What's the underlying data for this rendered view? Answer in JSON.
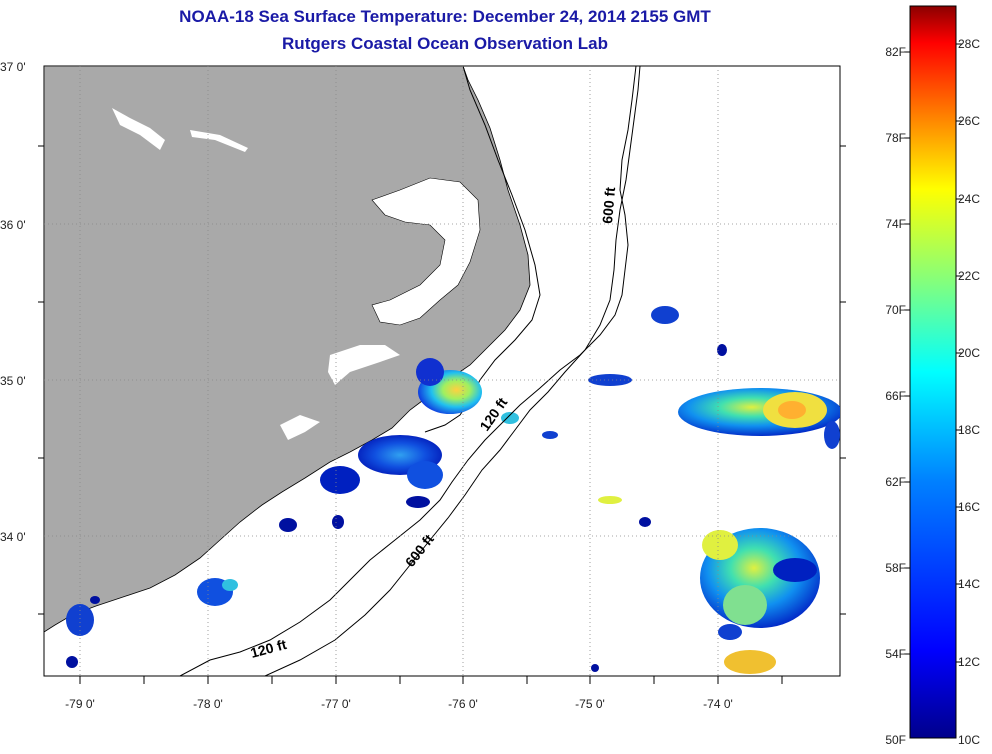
{
  "title": {
    "line1": "NOAA-18 Sea Surface Temperature:  December 24, 2014 2155 GMT",
    "line2": "Rutgers Coastal Ocean Observation Lab"
  },
  "latitude_labels": [
    "37 0'",
    "36 0'",
    "35 0'",
    "34 0'"
  ],
  "longitude_labels": [
    "-79 0'",
    "-78 0'",
    "-77 0'",
    "-76 0'",
    "-75 0'",
    "-74 0'"
  ],
  "contour_labels": {
    "c600_north": "600 ft",
    "c600_south": "600 ft",
    "c120_mid": "120 ft",
    "c120_south": "120 ft"
  },
  "colorbar": {
    "fahrenheit": [
      "82F",
      "78F",
      "74F",
      "70F",
      "66F",
      "62F",
      "58F",
      "54F",
      "50F"
    ],
    "celsius": [
      "28C",
      "26C",
      "24C",
      "22C",
      "20C",
      "18C",
      "16C",
      "14C",
      "12C",
      "10C"
    ],
    "colors": [
      "#8b0000",
      "#ff0000",
      "#ff8000",
      "#ffff00",
      "#80ff80",
      "#00ffff",
      "#0080ff",
      "#0000ff",
      "#00008b"
    ]
  },
  "colors": {
    "land": "#a9a9a9",
    "title": "#1a1aa6"
  }
}
